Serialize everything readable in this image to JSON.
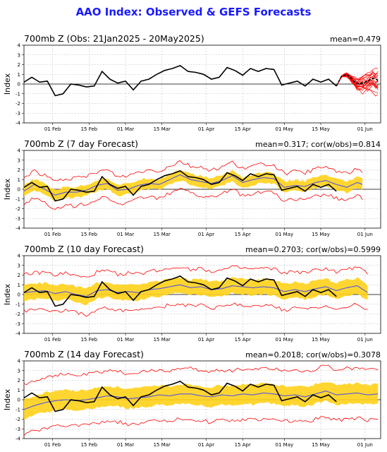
{
  "title": "AAO Index: Observed & GEFS Forecasts",
  "colors": {
    "title": "#1a1aff",
    "observed": "#000000",
    "ensemble": "#ff0000",
    "band": "#ffd11a",
    "mean_line": "#5555dd",
    "zero_line": "#000000"
  },
  "chart_data": [
    {
      "type": "line",
      "title": "700mb Z (Obs: 21Jan2025 - 20May2025)",
      "stats": "mean=0.479",
      "ylabel": "Index",
      "ylim": [
        -4,
        4
      ],
      "yticks": [
        "-4",
        "-3",
        "-2",
        "-1",
        "0",
        "1",
        "2",
        "3",
        "4"
      ],
      "xticks": [
        "01 Feb",
        "15 Feb",
        "01 Mar",
        "15 Mar",
        "01 Apr",
        "15 Apr",
        "01 May",
        "15 May",
        "01 Jun"
      ],
      "grid": true,
      "series": [
        {
          "day": 0,
          "obs": 0.2
        },
        {
          "day": 3,
          "obs": 0.7
        },
        {
          "day": 6,
          "obs": 0.2
        },
        {
          "day": 9,
          "obs": 0.3
        },
        {
          "day": 12,
          "obs": -1.2
        },
        {
          "day": 15,
          "obs": -1.0
        },
        {
          "day": 18,
          "obs": 0.0
        },
        {
          "day": 21,
          "obs": -0.1
        },
        {
          "day": 24,
          "obs": -0.3
        },
        {
          "day": 27,
          "obs": -0.2
        },
        {
          "day": 30,
          "obs": 1.3
        },
        {
          "day": 33,
          "obs": 0.5
        },
        {
          "day": 36,
          "obs": 0.1
        },
        {
          "day": 39,
          "obs": 0.3
        },
        {
          "day": 42,
          "obs": -0.6
        },
        {
          "day": 45,
          "obs": 0.3
        },
        {
          "day": 48,
          "obs": 0.5
        },
        {
          "day": 51,
          "obs": 1.0
        },
        {
          "day": 54,
          "obs": 1.4
        },
        {
          "day": 57,
          "obs": 1.6
        },
        {
          "day": 60,
          "obs": 1.9
        },
        {
          "day": 63,
          "obs": 1.3
        },
        {
          "day": 66,
          "obs": 1.2
        },
        {
          "day": 69,
          "obs": 1.0
        },
        {
          "day": 72,
          "obs": 0.5
        },
        {
          "day": 75,
          "obs": 0.7
        },
        {
          "day": 78,
          "obs": 1.7
        },
        {
          "day": 81,
          "obs": 1.4
        },
        {
          "day": 84,
          "obs": 0.9
        },
        {
          "day": 87,
          "obs": 1.6
        },
        {
          "day": 90,
          "obs": 1.3
        },
        {
          "day": 93,
          "obs": 1.6
        },
        {
          "day": 96,
          "obs": 1.5
        },
        {
          "day": 99,
          "obs": -0.1
        },
        {
          "day": 102,
          "obs": 0.1
        },
        {
          "day": 105,
          "obs": 0.3
        },
        {
          "day": 108,
          "obs": -0.2
        },
        {
          "day": 111,
          "obs": 0.5
        },
        {
          "day": 114,
          "obs": 0.2
        },
        {
          "day": 117,
          "obs": 0.5
        },
        {
          "day": 120,
          "obs": -0.2
        }
      ],
      "forecast_mean": [
        {
          "day": 120,
          "value": -0.2
        },
        {
          "day": 122,
          "value": 0.8
        },
        {
          "day": 124,
          "value": 1.0
        },
        {
          "day": 126,
          "value": 0.5
        },
        {
          "day": 128,
          "value": 0.0
        },
        {
          "day": 130,
          "value": 0.1
        },
        {
          "day": 132,
          "value": 0.3
        },
        {
          "day": 134,
          "value": 0.6
        },
        {
          "day": 136,
          "value": 0.4
        }
      ]
    },
    {
      "type": "line",
      "title": "700mb Z (7 day Forecast)",
      "stats": "mean=0.317; cor(w/obs)=0.814",
      "ylabel": "Index",
      "ylim": [
        -4,
        4
      ],
      "yticks": [
        "-4",
        "-3",
        "-2",
        "-1",
        "0",
        "1",
        "2",
        "3",
        "4"
      ],
      "xticks": [
        "01 Feb",
        "15 Feb",
        "01 Mar",
        "15 Mar",
        "01 Apr",
        "15 Apr",
        "01 May",
        "15 May",
        "01 Jun"
      ],
      "grid": true,
      "series": [
        {
          "day": 0,
          "fc": -0.2
        },
        {
          "day": 4,
          "fc": 0.5
        },
        {
          "day": 8,
          "fc": 0.0
        },
        {
          "day": 12,
          "fc": -0.6
        },
        {
          "day": 16,
          "fc": -0.3
        },
        {
          "day": 20,
          "fc": -0.3
        },
        {
          "day": 24,
          "fc": -0.1
        },
        {
          "day": 28,
          "fc": 0.4
        },
        {
          "day": 32,
          "fc": 0.6
        },
        {
          "day": 36,
          "fc": -0.1
        },
        {
          "day": 40,
          "fc": 0.0
        },
        {
          "day": 44,
          "fc": 0.4
        },
        {
          "day": 48,
          "fc": 0.6
        },
        {
          "day": 52,
          "fc": 0.5
        },
        {
          "day": 56,
          "fc": 1.0
        },
        {
          "day": 60,
          "fc": 1.5
        },
        {
          "day": 64,
          "fc": 1.0
        },
        {
          "day": 68,
          "fc": 0.8
        },
        {
          "day": 72,
          "fc": 0.6
        },
        {
          "day": 76,
          "fc": 0.9
        },
        {
          "day": 80,
          "fc": 1.4
        },
        {
          "day": 84,
          "fc": 0.7
        },
        {
          "day": 88,
          "fc": 1.0
        },
        {
          "day": 92,
          "fc": 1.2
        },
        {
          "day": 96,
          "fc": 1.1
        },
        {
          "day": 100,
          "fc": 0.2
        },
        {
          "day": 104,
          "fc": 0.4
        },
        {
          "day": 108,
          "fc": 0.3
        },
        {
          "day": 112,
          "fc": 0.7
        },
        {
          "day": 116,
          "fc": 0.9
        },
        {
          "day": 120,
          "fc": 0.5
        },
        {
          "day": 124,
          "fc": 0.2
        },
        {
          "day": 128,
          "fc": 0.7
        },
        {
          "day": 130,
          "fc": 0.5
        }
      ]
    },
    {
      "type": "line",
      "title": "700mb Z (10 day Forecast)",
      "stats": "mean=0.2703; cor(w/obs)=0.5999",
      "ylabel": "Index",
      "ylim": [
        -4,
        4
      ],
      "yticks": [
        "-4",
        "-3",
        "-2",
        "-1",
        "0",
        "1",
        "2",
        "3",
        "4"
      ],
      "xticks": [
        "01 Feb",
        "15 Feb",
        "01 Mar",
        "15 Mar",
        "01 Apr",
        "15 Apr",
        "01 May",
        "15 May",
        "01 Jun"
      ],
      "grid": true,
      "series": [
        {
          "day": 0,
          "fc": 0.2
        },
        {
          "day": 4,
          "fc": 0.3
        },
        {
          "day": 8,
          "fc": 0.4
        },
        {
          "day": 12,
          "fc": 0.1
        },
        {
          "day": 16,
          "fc": 0.3
        },
        {
          "day": 20,
          "fc": 0.0
        },
        {
          "day": 24,
          "fc": -0.2
        },
        {
          "day": 28,
          "fc": 0.4
        },
        {
          "day": 32,
          "fc": 0.5
        },
        {
          "day": 36,
          "fc": 0.2
        },
        {
          "day": 40,
          "fc": 0.3
        },
        {
          "day": 44,
          "fc": 0.2
        },
        {
          "day": 48,
          "fc": 0.5
        },
        {
          "day": 52,
          "fc": 0.6
        },
        {
          "day": 56,
          "fc": 0.8
        },
        {
          "day": 60,
          "fc": 1.0
        },
        {
          "day": 64,
          "fc": 0.7
        },
        {
          "day": 68,
          "fc": 0.8
        },
        {
          "day": 72,
          "fc": 0.5
        },
        {
          "day": 76,
          "fc": 0.6
        },
        {
          "day": 80,
          "fc": 0.9
        },
        {
          "day": 84,
          "fc": 0.8
        },
        {
          "day": 88,
          "fc": 0.7
        },
        {
          "day": 92,
          "fc": 0.8
        },
        {
          "day": 96,
          "fc": 0.7
        },
        {
          "day": 100,
          "fc": 0.3
        },
        {
          "day": 104,
          "fc": 0.5
        },
        {
          "day": 108,
          "fc": 0.3
        },
        {
          "day": 112,
          "fc": 0.6
        },
        {
          "day": 116,
          "fc": 0.8
        },
        {
          "day": 120,
          "fc": 0.4
        },
        {
          "day": 124,
          "fc": 0.7
        },
        {
          "day": 128,
          "fc": 0.9
        },
        {
          "day": 132,
          "fc": 0.2
        }
      ]
    },
    {
      "type": "line",
      "title": "700mb Z (14 day Forecast)",
      "stats": "mean=0.2018; cor(w/obs)=0.3078",
      "ylabel": "Index",
      "ylim": [
        -4,
        4
      ],
      "yticks": [
        "-4",
        "-3",
        "-2",
        "-1",
        "0",
        "1",
        "2",
        "3",
        "4"
      ],
      "xticks": [
        "01 Feb",
        "15 Feb",
        "01 Mar",
        "15 Mar",
        "01 Apr",
        "15 Apr",
        "01 May",
        "15 May",
        "01 Jun"
      ],
      "grid": true,
      "series": [
        {
          "day": 0,
          "fc": -1.0
        },
        {
          "day": 4,
          "fc": -0.6
        },
        {
          "day": 8,
          "fc": -0.3
        },
        {
          "day": 12,
          "fc": -0.1
        },
        {
          "day": 16,
          "fc": 0.0
        },
        {
          "day": 20,
          "fc": -0.1
        },
        {
          "day": 24,
          "fc": 0.0
        },
        {
          "day": 28,
          "fc": 0.2
        },
        {
          "day": 32,
          "fc": 0.4
        },
        {
          "day": 36,
          "fc": 0.3
        },
        {
          "day": 40,
          "fc": 0.1
        },
        {
          "day": 44,
          "fc": 0.2
        },
        {
          "day": 48,
          "fc": 0.3
        },
        {
          "day": 52,
          "fc": 0.5
        },
        {
          "day": 56,
          "fc": 0.4
        },
        {
          "day": 60,
          "fc": 0.6
        },
        {
          "day": 64,
          "fc": 0.6
        },
        {
          "day": 68,
          "fc": 0.4
        },
        {
          "day": 72,
          "fc": 0.3
        },
        {
          "day": 76,
          "fc": 0.5
        },
        {
          "day": 80,
          "fc": 0.4
        },
        {
          "day": 84,
          "fc": 0.6
        },
        {
          "day": 88,
          "fc": 0.5
        },
        {
          "day": 92,
          "fc": 0.7
        },
        {
          "day": 96,
          "fc": 0.6
        },
        {
          "day": 100,
          "fc": 0.4
        },
        {
          "day": 104,
          "fc": 0.5
        },
        {
          "day": 108,
          "fc": 0.3
        },
        {
          "day": 112,
          "fc": 0.6
        },
        {
          "day": 116,
          "fc": 0.9
        },
        {
          "day": 120,
          "fc": 0.5
        },
        {
          "day": 124,
          "fc": 0.6
        },
        {
          "day": 128,
          "fc": 0.7
        },
        {
          "day": 132,
          "fc": 0.5
        },
        {
          "day": 136,
          "fc": 0.6
        }
      ]
    }
  ]
}
